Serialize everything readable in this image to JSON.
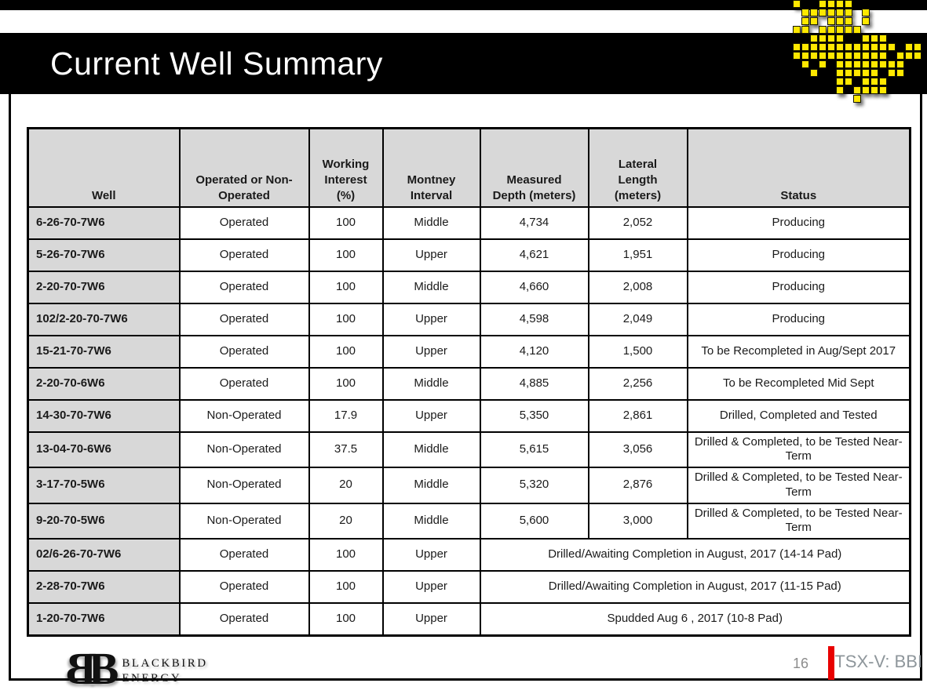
{
  "title": "Current Well Summary",
  "table": {
    "columns": [
      "Well",
      "Operated or Non-\nOperated",
      "Working\nInterest\n(%)",
      "Montney\nInterval",
      "Measured\nDepth (meters)",
      "Lateral\nLength\n(meters)",
      "Status"
    ],
    "rows": [
      {
        "well": "6-26-70-7W6",
        "operated": "Operated",
        "working_interest": "100",
        "interval": "Middle",
        "depth": "4,734",
        "lateral": "2,052",
        "status": "Producing"
      },
      {
        "well": "5-26-70-7W6",
        "operated": "Operated",
        "working_interest": "100",
        "interval": "Upper",
        "depth": "4,621",
        "lateral": "1,951",
        "status": "Producing"
      },
      {
        "well": "2-20-70-7W6",
        "operated": "Operated",
        "working_interest": "100",
        "interval": "Middle",
        "depth": "4,660",
        "lateral": "2,008",
        "status": "Producing"
      },
      {
        "well": "102/2-20-70-7W6",
        "operated": "Operated",
        "working_interest": "100",
        "interval": "Upper",
        "depth": "4,598",
        "lateral": "2,049",
        "status": "Producing"
      },
      {
        "well": "15-21-70-7W6",
        "operated": "Operated",
        "working_interest": "100",
        "interval": "Upper",
        "depth": "4,120",
        "lateral": "1,500",
        "status": "To be Recompleted in Aug/Sept 2017"
      },
      {
        "well": "2-20-70-6W6",
        "operated": "Operated",
        "working_interest": "100",
        "interval": "Middle",
        "depth": "4,885",
        "lateral": "2,256",
        "status": "To be Recompleted  Mid Sept"
      },
      {
        "well": "14-30-70-7W6",
        "operated": "Non-Operated",
        "working_interest": "17.9",
        "interval": "Upper",
        "depth": "5,350",
        "lateral": "2,861",
        "status": "Drilled, Completed and  Tested"
      },
      {
        "well": "13-04-70-6W6",
        "operated": "Non-Operated",
        "working_interest": "37.5",
        "interval": "Middle",
        "depth": "5,615",
        "lateral": "3,056",
        "status": "Drilled & Completed, to be Tested Near-Term"
      },
      {
        "well": "3-17-70-5W6",
        "operated": "Non-Operated",
        "working_interest": "20",
        "interval": "Middle",
        "depth": "5,320",
        "lateral": "2,876",
        "status": "Drilled & Completed, to be Tested Near-Term"
      },
      {
        "well": "9-20-70-5W6",
        "operated": "Non-Operated",
        "working_interest": "20",
        "interval": "Middle",
        "depth": "5,600",
        "lateral": "3,000",
        "status": "Drilled & Completed, to be Tested Near-Term"
      },
      {
        "well": "02/6-26-70-7W6",
        "operated": "Operated",
        "working_interest": "100",
        "interval": "Upper",
        "status_span": "Drilled/Awaiting Completion in August, 2017 (14-14 Pad)"
      },
      {
        "well": "2-28-70-7W6",
        "operated": "Operated",
        "working_interest": "100",
        "interval": "Upper",
        "status_span": "Drilled/Awaiting Completion in August, 2017 (11-15 Pad)"
      },
      {
        "well": "1-20-70-7W6",
        "operated": "Operated",
        "working_interest": "100",
        "interval": "Upper",
        "status_span": "Spudded Aug 6 , 2017 (10-8 Pad)"
      }
    ]
  },
  "footer": {
    "monogram_letter": "B",
    "brand_line1": "BLACKBIRD",
    "brand_line2": "ENERGY",
    "page_number": "16",
    "ticker": "TSX-V: BBI"
  },
  "colors": {
    "bird_yellow": "#ffe800",
    "accent_red": "#e80000",
    "header_gray": "#d8d8d8",
    "footer_text_gray": "#8e969b",
    "page_number_gray": "#8c8c8c",
    "bar_black": "#000000"
  },
  "logo_bird": {
    "grid": [
      ".1..1111........",
      "..111111.1......",
      "..11.111.1......",
      ".11.11111.......",
      "...1111..111....",
      ".111111111111.11",
      ".11111111111.111",
      "..1.1.11111111..",
      "...1..11111.11..",
      "......11.111....",
      "......1.1111....",
      "........1......."
    ]
  }
}
